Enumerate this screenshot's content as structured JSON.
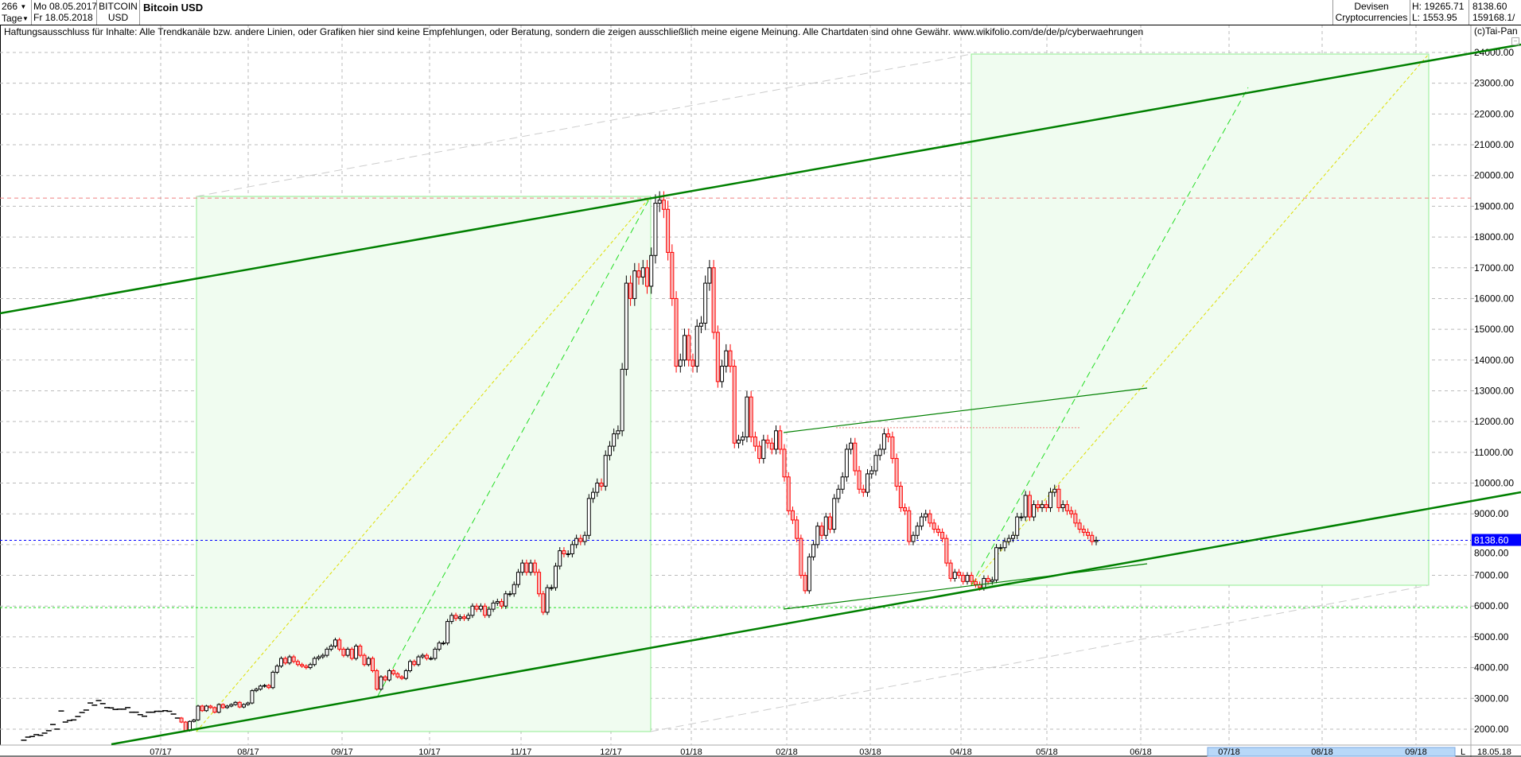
{
  "header": {
    "bars": "266",
    "period": "Tage",
    "date_from": "Mo 08.05.2017",
    "date_to": "Fr 18.05.2018",
    "symbol_line1": "BITCOIN",
    "symbol_line2": "USD",
    "title": "Bitcoin USD",
    "category_line1": "Devisen",
    "category_line2": "Cryptocurrencies",
    "high": "H: 19265.71",
    "low": "L: 1553.95",
    "last": "8138.60",
    "volume": "159168.1/"
  },
  "disclaimer": "Haftungsausschluss für Inhalte: Alle Trendkanäle bzw. andere Linien, oder Grafiken hier sind keine Empfehlungen, oder Beratung, sondern die zeigen ausschließlich meine eigene Meinung. Alle Chartdaten sind ohne Gewähr.  www.wikifolio.com/de/de/p/cyberwaehrungen",
  "copyright": "(c)Tai-Pan",
  "collapse_icon": "minus-box-icon",
  "chart_data": {
    "type": "candlestick",
    "title": "Bitcoin USD",
    "ylim": [
      1700,
      24300
    ],
    "y_ticks": [
      "2000.00",
      "3000.00",
      "4000.00",
      "5000.00",
      "6000.00",
      "7000.00",
      "8000.00",
      "9000.00",
      "10000.00",
      "11000.00",
      "12000.00",
      "13000.00",
      "14000.00",
      "15000.00",
      "16000.00",
      "17000.00",
      "18000.00",
      "19000.00",
      "20000.00",
      "21000.00",
      "22000.00",
      "23000.00",
      "24000.00"
    ],
    "x_ticks": [
      "07/17",
      "08/17",
      "09/17",
      "10/17",
      "11/17",
      "12/17",
      "01/18",
      "02/18",
      "03/18",
      "04/18",
      "05/18",
      "06/18",
      "07/18",
      "08/18",
      "09/18"
    ],
    "x_end_label": "18.05.18",
    "scroll_label": "L",
    "grid": true,
    "last_price": "8138.60",
    "levels": {
      "high_line": 19265.71,
      "resistance": 11800,
      "support": 5950,
      "last": 8138.6
    },
    "colors": {
      "up": "#000000",
      "down": "#ff0000",
      "down_fill": "#f8b8b8",
      "trend": "#008000",
      "box_fill": "#f0fcf0",
      "box_stroke": "#90ee90",
      "last_price": "#0000ff"
    },
    "line_closes": [
      1640,
      1740,
      1760,
      1820,
      1800,
      1870,
      1950,
      2150,
      2000,
      2590,
      2230,
      2280,
      2300,
      2410,
      2540,
      2620,
      2850,
      2780,
      2930,
      2830,
      2700,
      2690,
      2640,
      2650,
      2650,
      2700,
      2550,
      2550,
      2470,
      2420,
      2550,
      2550,
      2580,
      2580,
      2600,
      2580,
      2490,
      2360
    ],
    "candle_closes": [
      2230,
      1950,
      2250,
      2300,
      2750,
      2600,
      2750,
      2700,
      2550,
      2800,
      2700,
      2750,
      2800,
      2870,
      2720,
      2800,
      2850,
      3250,
      3300,
      3400,
      3420,
      3350,
      3850,
      4050,
      4300,
      4150,
      4350,
      4200,
      4100,
      4050,
      4000,
      4100,
      4300,
      4350,
      4400,
      4600,
      4700,
      4900,
      4600,
      4400,
      4600,
      4300,
      4700,
      4400,
      4100,
      4300,
      3900,
      3300,
      3700,
      3600,
      3900,
      3800,
      3700,
      3650,
      3900,
      4200,
      4100,
      4350,
      4400,
      4300,
      4300,
      4600,
      4800,
      4800,
      5500,
      5700,
      5600,
      5650,
      5600,
      5700,
      6000,
      5900,
      6000,
      5700,
      5900,
      6100,
      6150,
      6000,
      6400,
      6400,
      6700,
      7100,
      7400,
      7100,
      7400,
      7100,
      6400,
      5800,
      6600,
      6600,
      7300,
      7800,
      7700,
      7700,
      8000,
      8200,
      8100,
      8300,
      9500,
      9700,
      10000,
      9900,
      10900,
      11200,
      11600,
      11700,
      13700,
      16500,
      16000,
      16900,
      16700,
      17000,
      16400,
      17400,
      19100,
      19200,
      18900,
      17500,
      16000,
      13800,
      14000,
      14800,
      14000,
      13800,
      15100,
      15200,
      16500,
      17000,
      14900,
      13300,
      13800,
      14300,
      13800,
      11300,
      11400,
      11500,
      12800,
      11500,
      11200,
      10800,
      11400,
      11300,
      11100,
      11700,
      11100,
      10200,
      9100,
      8800,
      8200,
      7000,
      6500,
      7600,
      8000,
      8600,
      8300,
      8900,
      8500,
      9500,
      9800,
      10200,
      11100,
      11300,
      10400,
      9800,
      9700,
      10300,
      10400,
      10900,
      11100,
      11600,
      11500,
      10800,
      9900,
      9200,
      9100,
      8100,
      8300,
      8600,
      8900,
      9000,
      8700,
      8500,
      8400,
      8200,
      7400,
      6900,
      7100,
      7000,
      6800,
      7000,
      6800,
      6700,
      6600,
      6900,
      6800,
      6850,
      7900,
      7900,
      8100,
      8200,
      8300,
      8900,
      8900,
      9600,
      8900,
      9300,
      9200,
      9300,
      9200,
      9700,
      9800,
      9200,
      9300,
      9100,
      9000,
      8700,
      8500,
      8400,
      8300,
      8100,
      8138.6
    ]
  }
}
